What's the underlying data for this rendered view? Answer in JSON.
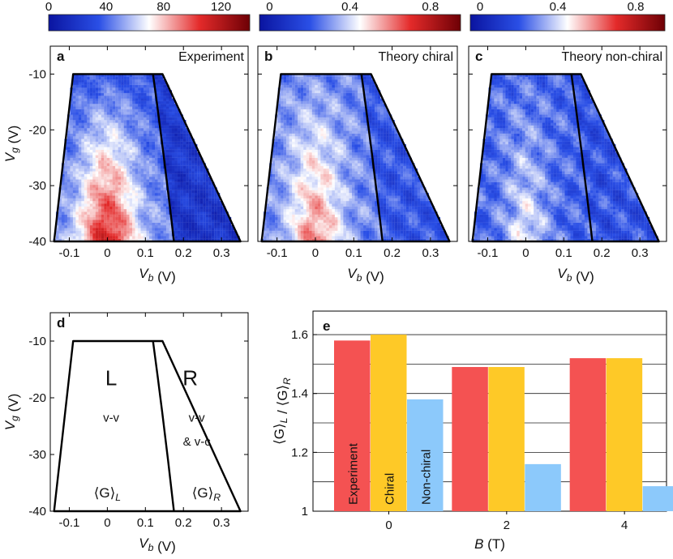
{
  "colorbars": [
    {
      "ticks": [
        0,
        40,
        80,
        120
      ],
      "range": [
        0,
        140
      ],
      "colors": [
        "#0a14a0",
        "#2a4fe6",
        "#ffffff",
        "#e42a2a",
        "#6e0005"
      ]
    },
    {
      "ticks": [
        "0",
        "0.4",
        "0.8"
      ],
      "tick_values": [
        0,
        0.4,
        0.8
      ],
      "range": [
        -0.05,
        0.95
      ],
      "colors": [
        "#0a14a0",
        "#2a4fe6",
        "#ffffff",
        "#e42a2a",
        "#6e0005"
      ]
    },
    {
      "ticks": [
        "0",
        "0.4",
        "0.8"
      ],
      "tick_values": [
        0,
        0.4,
        0.8
      ],
      "range": [
        -0.05,
        0.95
      ],
      "colors": [
        "#0a14a0",
        "#2a4fe6",
        "#ffffff",
        "#e42a2a",
        "#6e0005"
      ]
    }
  ],
  "panels": [
    {
      "letter": "a",
      "title": "Experiment"
    },
    {
      "letter": "b",
      "title": "Theory chiral"
    },
    {
      "letter": "c",
      "title": "Theory non-chiral"
    },
    {
      "letter": "d",
      "title": ""
    },
    {
      "letter": "e",
      "title": ""
    }
  ],
  "map_axes": {
    "xlabel": "V_b (V)",
    "ylabel": "V_g (V)",
    "xlim": [
      -0.15,
      0.37
    ],
    "ylim": [
      -40,
      -5
    ],
    "xticks": [
      -0.1,
      0,
      0.1,
      0.2,
      0.3
    ],
    "xtick_labels": [
      "-0.1",
      "0",
      "0.1",
      "0.2",
      "0.3"
    ],
    "yticks": [
      -10,
      -20,
      -30,
      -40
    ],
    "ytick_labels": [
      "-10",
      "-20",
      "-30",
      "-40"
    ]
  },
  "boundary": {
    "outer": [
      [
        -0.14,
        -40
      ],
      [
        -0.09,
        -10
      ],
      [
        0.145,
        -10
      ],
      [
        0.35,
        -40
      ]
    ],
    "divider": [
      [
        0.12,
        -10
      ],
      [
        0.175,
        -40
      ]
    ]
  },
  "region_labels": {
    "L": "L",
    "R": "R",
    "L_sub": "v-v",
    "R_sub1": "v-v",
    "R_sub2": "& v-c",
    "GL": "⟨G⟩_L",
    "GR": "⟨G⟩_R"
  },
  "chart_data": {
    "type": "bar",
    "categories": [
      "0",
      "2",
      "4"
    ],
    "series": [
      {
        "name": "Experiment",
        "color": "#f45252",
        "values": [
          1.58,
          1.49,
          1.52
        ]
      },
      {
        "name": "Chiral",
        "color": "#fec927",
        "values": [
          1.6,
          1.49,
          1.52
        ]
      },
      {
        "name": "Non-chiral",
        "color": "#8cc9fb",
        "values": [
          1.38,
          1.16,
          1.085
        ]
      }
    ],
    "xlabel": "B (T)",
    "ylabel": "⟨G⟩_L / ⟨G⟩_R",
    "ylim": [
      1.0,
      1.68
    ],
    "yticks": [
      1,
      1.2,
      1.4,
      1.6
    ],
    "ytick_labels": [
      "1",
      "1.2",
      "1.4",
      "1.6"
    ],
    "grid": true
  }
}
